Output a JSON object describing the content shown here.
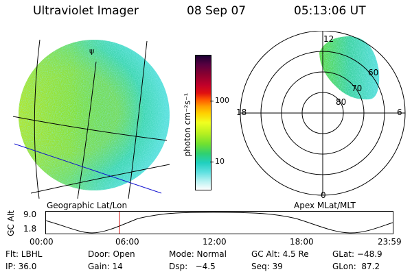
{
  "header": {
    "instrument": "Ultraviolet Imager",
    "date": "08 Sep 07",
    "time": "05:13:06 UT"
  },
  "colorbar": {
    "axis_label": "photon cm⁻²s⁻¹",
    "ticks": [
      "100",
      "10"
    ],
    "colors": [
      "#1a0033",
      "#5a0040",
      "#8a0030",
      "#c0002a",
      "#e01010",
      "#ff5a00",
      "#ffa000",
      "#ffd000",
      "#f0ff20",
      "#b8f020",
      "#70e030",
      "#30d070",
      "#20d0c0",
      "#60e0e0",
      "#b0f0f0",
      "#ffffff"
    ]
  },
  "polar": {
    "mlt_labels": [
      "12",
      "18",
      "6",
      "0"
    ],
    "mlat_labels": [
      "60",
      "70",
      "80"
    ]
  },
  "captions": {
    "geographic": "Geographic Lat/Lon",
    "apex": "Apex MLat/MLT"
  },
  "altitude_plot": {
    "axis_label": "GC Alt",
    "y_ticks": [
      "9.0",
      "1.8"
    ],
    "x_ticks": [
      "00:00",
      "06:00",
      "12:00",
      "18:00",
      "23:59"
    ],
    "marker_time": "05:13:06"
  },
  "info": {
    "row1": {
      "flt": "Flt: LBHL",
      "door": "Door: Open",
      "mode": "Mode: Normal",
      "gc_alt": "GC Alt: 4.5 Re",
      "glat": "GLat: −48.9"
    },
    "row2": {
      "ip": "IP: 36.0",
      "gain": "Gain: 14",
      "dsp": "Dsp:   −4.5",
      "seq": "Seq: 39",
      "glon": "GLon:  87.2"
    }
  }
}
